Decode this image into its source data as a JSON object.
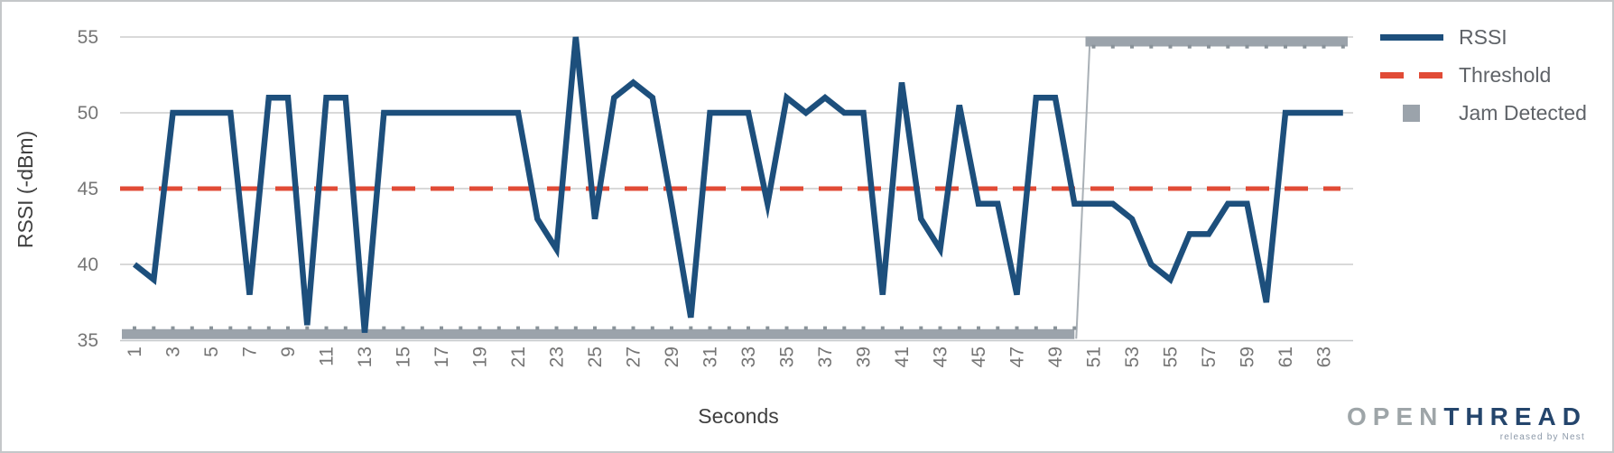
{
  "chart_data": {
    "type": "line",
    "title": "",
    "xlabel": "Seconds",
    "ylabel": "RSSI (-dBm)",
    "x": [
      1,
      2,
      3,
      4,
      5,
      6,
      7,
      8,
      9,
      10,
      11,
      12,
      13,
      14,
      15,
      16,
      17,
      18,
      19,
      20,
      21,
      22,
      23,
      24,
      25,
      26,
      27,
      28,
      29,
      30,
      31,
      32,
      33,
      34,
      35,
      36,
      37,
      38,
      39,
      40,
      41,
      42,
      43,
      44,
      45,
      46,
      47,
      48,
      49,
      50,
      51,
      52,
      53,
      54,
      55,
      56,
      57,
      58,
      59,
      60,
      61,
      62,
      63,
      64
    ],
    "x_tick_labels": [
      "1",
      "3",
      "5",
      "7",
      "9",
      "11",
      "13",
      "15",
      "17",
      "19",
      "21",
      "23",
      "25",
      "27",
      "29",
      "31",
      "33",
      "35",
      "37",
      "39",
      "41",
      "43",
      "45",
      "47",
      "49",
      "51",
      "53",
      "55",
      "57",
      "59",
      "61",
      "63"
    ],
    "ylim": [
      35,
      55
    ],
    "yticks": [
      55,
      50,
      45,
      40,
      35
    ],
    "grid": "horizontal",
    "legend_position": "right-top",
    "series": [
      {
        "name": "RSSI",
        "type": "line",
        "color": "#1d4f7c",
        "values": [
          40,
          39,
          50,
          50,
          50,
          50,
          38,
          51,
          51,
          36,
          51,
          51,
          35.5,
          50,
          50,
          50,
          50,
          50,
          50,
          50,
          50,
          43,
          41,
          55,
          43,
          51,
          52,
          51,
          44,
          36.5,
          50,
          50,
          50,
          44,
          51,
          50,
          51,
          50,
          50,
          38,
          52,
          43,
          41,
          50.5,
          44,
          44,
          38,
          51,
          51,
          44,
          44,
          44,
          43,
          40,
          39,
          42,
          42,
          44,
          44,
          37.5,
          50,
          50,
          50,
          50
        ]
      },
      {
        "name": "Threshold",
        "type": "dashed-line",
        "color": "#e14b36",
        "value": 45
      },
      {
        "name": "Jam Detected",
        "type": "step-bar",
        "color": "#9ba3ab",
        "value_low": 35.4,
        "value_high": 54.7,
        "high_from_x": 51
      }
    ]
  },
  "legend": {
    "items": [
      {
        "label": "RSSI"
      },
      {
        "label": "Threshold"
      },
      {
        "label": "Jam Detected"
      }
    ]
  },
  "branding": {
    "logo_part1": "OPEN",
    "logo_part2": "THREAD",
    "tagline": "released by Nest"
  },
  "colors": {
    "rssi_line": "#1d4f7c",
    "threshold": "#e14b36",
    "jam_bar": "#9ba3ab",
    "jam_bar_tick": "#8a939a",
    "jam_connector": "#a9b0b6",
    "grid": "#d9d9d9",
    "axis_line": "#c5c8ca",
    "tick_label": "#757575",
    "axis_title": "#3f3f3f",
    "legend_text": "#5f6368",
    "logo_gray": "#9ea5a8",
    "logo_navy": "#24456c",
    "tagline_color": "#8b98a8",
    "frame_border": "#c4c7c9"
  }
}
